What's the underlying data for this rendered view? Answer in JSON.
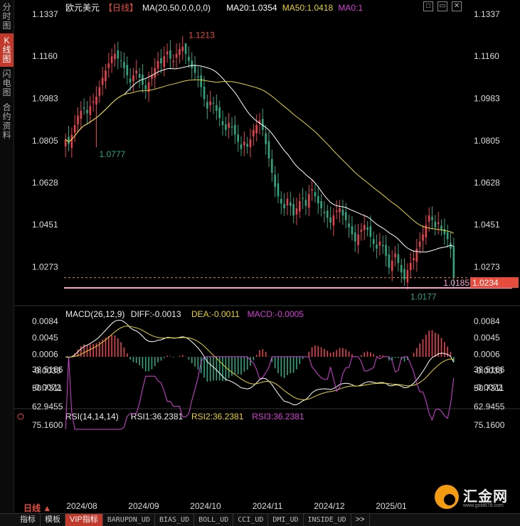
{
  "sidebar": {
    "items": [
      "分时图",
      "K线图",
      "闪电图",
      "合约资料"
    ],
    "active": 1
  },
  "header": {
    "symbol": "欧元美元",
    "period_tag": "【日线】",
    "ma_label": "MA(20,50,0,0,0,0)",
    "ma20": "MA20:1.0354",
    "ma50": "MA50:1.0418",
    "ma0": "MA0:1"
  },
  "top_icons": [
    "□",
    "▭",
    "✕"
  ],
  "macd_header": {
    "label": "MACD(26,12,9)",
    "diff": "DIFF:-0.0013",
    "dea": "DEA:-0.0011",
    "macd": "MACD:-0.0005"
  },
  "rsi_header": {
    "label": "RSI(14,14,14)",
    "rsi1": "RSI1:36.2381",
    "rsi2": "RSI2:36.2381",
    "rsi3": "RSI3:36.2381"
  },
  "price_axis": [
    "1.1337",
    "1.1160",
    "1.0983",
    "1.0805",
    "1.0628",
    "1.0451",
    "1.0273"
  ],
  "macd_axis": [
    "0.0084",
    "0.0045",
    "0.0006",
    "-0.0033",
    "-0.0072"
  ],
  "rsi_axis": [
    "75.1600",
    "62.9455",
    "50.7311",
    "38.5166"
  ],
  "date_labels": [
    "2024/08",
    "2024/09",
    "2024/10",
    "2024/11",
    "2024/12",
    "2025/01"
  ],
  "annotations": {
    "high": "1.1213",
    "low_left": "1.0777",
    "low_right": "1.0177",
    "dashed_price": "1.0185",
    "last_price": "1.0234"
  },
  "bottom_bar": {
    "period": "日线 ▲",
    "tabs": [
      "指标",
      "模板",
      "VIP指标",
      "BARUPDN_UD",
      "BIAS_UD",
      "BOLL_UD",
      "CCI_UD",
      "DMI_UD",
      "INSIDE_UD",
      ">>"
    ]
  },
  "logo": {
    "text": "汇金网",
    "url": "www.gold678.com"
  },
  "colors": {
    "up": "#e8434d",
    "down": "#2ea67f",
    "ma20": "#ffffff",
    "ma50": "#e6d32a",
    "rsi": "#d63fd6",
    "last_price": "#e74c3c",
    "support_line": "#f5a3c7"
  },
  "chart_data": [
    {
      "type": "candlestick",
      "title": "欧元美元 日线",
      "ylim": [
        1.0185,
        1.1337
      ],
      "x_labels": [
        "2024/08",
        "2024/09",
        "2024/10",
        "2024/11",
        "2024/12",
        "2025/01"
      ],
      "closes": [
        1.081,
        1.079,
        1.083,
        1.087,
        1.091,
        1.093,
        1.094,
        1.092,
        1.095,
        1.097,
        1.099,
        1.103,
        1.107,
        1.11,
        1.113,
        1.116,
        1.117,
        1.115,
        1.114,
        1.111,
        1.108,
        1.105,
        1.108,
        1.11,
        1.107,
        1.104,
        1.102,
        1.105,
        1.108,
        1.111,
        1.114,
        1.113,
        1.116,
        1.118,
        1.115,
        1.114,
        1.117,
        1.119,
        1.12,
        1.117,
        1.114,
        1.111,
        1.109,
        1.107,
        1.103,
        1.098,
        1.094,
        1.097,
        1.096,
        1.093,
        1.09,
        1.087,
        1.085,
        1.088,
        1.086,
        1.083,
        1.08,
        1.077,
        1.08,
        1.078,
        1.081,
        1.085,
        1.087,
        1.089,
        1.085,
        1.079,
        1.073,
        1.067,
        1.061,
        1.057,
        1.054,
        1.052,
        1.056,
        1.053,
        1.049,
        1.052,
        1.055,
        1.056,
        1.053,
        1.058,
        1.06,
        1.057,
        1.054,
        1.052,
        1.05,
        1.048,
        1.046,
        1.049,
        1.051,
        1.052,
        1.049,
        1.047,
        1.044,
        1.041,
        1.038,
        1.041,
        1.043,
        1.045,
        1.043,
        1.04,
        1.037,
        1.035,
        1.038,
        1.036,
        1.032,
        1.027,
        1.03,
        1.033,
        1.029,
        1.025,
        1.022,
        1.026,
        1.029,
        1.031,
        1.035,
        1.038,
        1.041,
        1.045,
        1.049,
        1.047,
        1.044,
        1.046,
        1.043,
        1.041,
        1.039,
        1.035,
        1.023
      ],
      "series": [
        {
          "name": "MA20",
          "last": 1.0354
        },
        {
          "name": "MA50",
          "last": 1.0418
        }
      ],
      "annotations": {
        "max": 1.1213,
        "min": 1.0177,
        "first_low": 1.0777,
        "support": 1.0185,
        "last": 1.0234
      }
    },
    {
      "type": "bar+line",
      "title": "MACD(26,12,9)",
      "ylim": [
        -0.0092,
        0.0092
      ],
      "series": [
        {
          "name": "DIFF",
          "last": -0.0013
        },
        {
          "name": "DEA",
          "last": -0.0011
        },
        {
          "name": "MACD",
          "last": -0.0005
        }
      ]
    },
    {
      "type": "line",
      "title": "RSI(14,14,14)",
      "ylim": [
        30,
        78
      ],
      "series": [
        {
          "name": "RSI1",
          "last": 36.2381
        }
      ]
    }
  ]
}
